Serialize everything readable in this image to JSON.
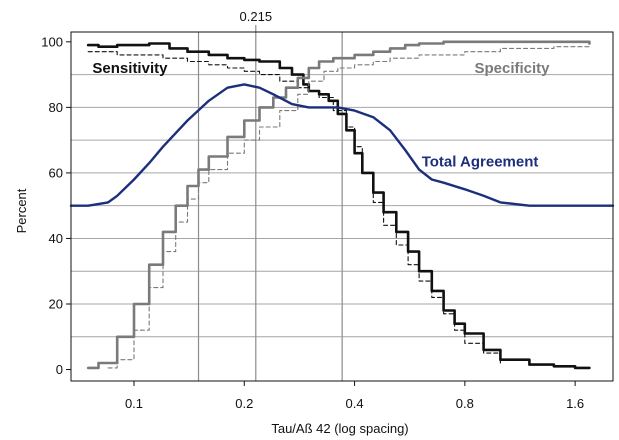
{
  "chart_data": {
    "type": "line",
    "xlabel": "Tau/Aß 42 (log spacing)",
    "ylabel": "Percent",
    "x_scale": "log",
    "xlim": [
      0.0673,
      2.03
    ],
    "ylim": [
      -3.5,
      103
    ],
    "x_ticks": [
      {
        "value": 0.1,
        "label": "0.1"
      },
      {
        "value": 0.2,
        "label": "0.2"
      },
      {
        "value": 0.4,
        "label": "0.4"
      },
      {
        "value": 0.8,
        "label": "0.8"
      },
      {
        "value": 1.6,
        "label": "1.6"
      }
    ],
    "y_ticks": [
      {
        "value": 0,
        "label": "0"
      },
      {
        "value": 20,
        "label": "20"
      },
      {
        "value": 40,
        "label": "40"
      },
      {
        "value": 60,
        "label": "60"
      },
      {
        "value": 80,
        "label": "80"
      },
      {
        "value": 100,
        "label": "100"
      }
    ],
    "y_gridlines": [
      10,
      20,
      30,
      40,
      50,
      60,
      70,
      80,
      90
    ],
    "vertical_lines": [
      0.15,
      0.215,
      0.37
    ],
    "top_annotation": {
      "value": 0.215,
      "label": "0.215"
    },
    "colors": {
      "sensitivity": "#111111",
      "specificity": "#7a7a7a",
      "total": "#1c2f7c",
      "grid": "#a6a6a6",
      "vline": "#8c8c8c"
    },
    "series": [
      {
        "name": "Sensitivity",
        "color": "#111111",
        "x": [
          0.075,
          0.08,
          0.09,
          0.1,
          0.11,
          0.125,
          0.14,
          0.16,
          0.18,
          0.2,
          0.22,
          0.25,
          0.27,
          0.29,
          0.3,
          0.32,
          0.34,
          0.36,
          0.38,
          0.4,
          0.42,
          0.45,
          0.48,
          0.52,
          0.56,
          0.6,
          0.65,
          0.7,
          0.75,
          0.8,
          0.9,
          1.0,
          1.2,
          1.4,
          1.6,
          1.75
        ],
        "y": [
          99,
          98.5,
          99,
          99,
          99.5,
          98,
          97,
          96,
          95,
          94.5,
          94,
          92,
          90,
          87,
          85,
          84,
          82,
          78,
          73,
          66,
          60,
          54,
          48,
          42,
          36,
          30,
          24,
          18,
          14,
          11,
          6,
          3,
          1.5,
          1,
          0.5,
          0.5
        ]
      },
      {
        "name": "Sensitivity (lower)",
        "color": "#111111",
        "x": [
          0.075,
          0.09,
          0.1,
          0.12,
          0.14,
          0.16,
          0.18,
          0.2,
          0.22,
          0.25,
          0.28,
          0.3,
          0.32,
          0.35,
          0.38,
          0.4,
          0.42,
          0.45,
          0.48,
          0.52,
          0.56,
          0.6,
          0.65,
          0.7,
          0.75,
          0.8,
          0.9,
          1.0
        ],
        "y": [
          97,
          96,
          96,
          95,
          94,
          93,
          92,
          91,
          90,
          88,
          86,
          85,
          83,
          79,
          74,
          68,
          60,
          51,
          44,
          38,
          32,
          27,
          22,
          17,
          12,
          8,
          5,
          2
        ]
      },
      {
        "name": "Specificity",
        "color": "#7a7a7a",
        "x": [
          0.075,
          0.08,
          0.09,
          0.1,
          0.11,
          0.12,
          0.13,
          0.14,
          0.15,
          0.16,
          0.18,
          0.2,
          0.22,
          0.24,
          0.26,
          0.28,
          0.3,
          0.32,
          0.35,
          0.4,
          0.45,
          0.5,
          0.55,
          0.6,
          0.7,
          0.8,
          1.0,
          1.3,
          1.75
        ],
        "y": [
          0.5,
          2,
          10,
          20,
          32,
          42,
          50,
          56,
          61,
          65,
          71,
          76,
          80,
          83,
          86,
          89,
          92,
          94,
          95,
          96,
          97,
          98,
          99,
          99.5,
          100,
          100,
          100,
          100,
          99.5
        ]
      },
      {
        "name": "Specificity (lower)",
        "color": "#7a7a7a",
        "x": [
          0.085,
          0.09,
          0.1,
          0.11,
          0.12,
          0.13,
          0.14,
          0.15,
          0.16,
          0.18,
          0.2,
          0.22,
          0.25,
          0.28,
          0.3,
          0.33,
          0.36,
          0.4,
          0.45,
          0.5,
          0.6,
          0.8,
          1.0,
          1.4,
          1.75
        ],
        "y": [
          0.5,
          3,
          12,
          25,
          36,
          45,
          52,
          57,
          61,
          66,
          70,
          74,
          79,
          84,
          88,
          91,
          92,
          93,
          94,
          95,
          96,
          97,
          98,
          98.5,
          98.5
        ]
      },
      {
        "name": "Total Agreement",
        "color": "#1c2f7c",
        "x": [
          0.0673,
          0.075,
          0.085,
          0.09,
          0.1,
          0.11,
          0.12,
          0.14,
          0.16,
          0.18,
          0.2,
          0.22,
          0.24,
          0.27,
          0.3,
          0.33,
          0.36,
          0.4,
          0.45,
          0.5,
          0.55,
          0.6,
          0.65,
          0.7,
          0.8,
          0.9,
          1.0,
          1.2,
          1.5,
          2.03
        ],
        "y": [
          50,
          50,
          51,
          53,
          58,
          63,
          68,
          76,
          82,
          86,
          87,
          86,
          84,
          81,
          80,
          80,
          80,
          79,
          77,
          73,
          67,
          61,
          58,
          57,
          55,
          53,
          51,
          50,
          50,
          50
        ]
      }
    ],
    "series_labels": [
      {
        "key": "Sensitivity",
        "text": "Sensitivity",
        "x": 0.077,
        "y": 90.5,
        "color": "#111111"
      },
      {
        "key": "Specificity",
        "text": "Specificity",
        "x": 0.85,
        "y": 90.5,
        "color": "#7a7a7a"
      },
      {
        "key": "Total Agreement",
        "text": "Total Agreement",
        "x": 0.61,
        "y": 62,
        "color": "#1c2f7c"
      }
    ]
  }
}
